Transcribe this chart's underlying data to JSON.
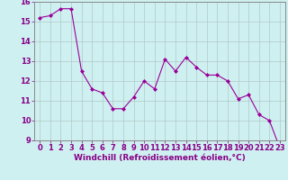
{
  "x": [
    0,
    1,
    2,
    3,
    4,
    5,
    6,
    7,
    8,
    9,
    10,
    11,
    12,
    13,
    14,
    15,
    16,
    17,
    18,
    19,
    20,
    21,
    22,
    23
  ],
  "y": [
    15.2,
    15.3,
    15.65,
    15.65,
    12.5,
    11.6,
    11.4,
    10.6,
    10.6,
    11.2,
    12.0,
    11.6,
    13.1,
    12.5,
    13.2,
    12.7,
    12.3,
    12.3,
    12.0,
    11.1,
    11.3,
    10.3,
    10.0,
    8.6
  ],
  "line_color": "#990099",
  "marker": "D",
  "marker_size": 2.0,
  "bg_color": "#cff0f0",
  "grid_color": "#b0c8c8",
  "xlabel": "Windchill (Refroidissement éolien,°C)",
  "ylim": [
    9,
    16
  ],
  "xlim": [
    -0.5,
    23.5
  ],
  "yticks": [
    9,
    10,
    11,
    12,
    13,
    14,
    15,
    16
  ],
  "xticks": [
    0,
    1,
    2,
    3,
    4,
    5,
    6,
    7,
    8,
    9,
    10,
    11,
    12,
    13,
    14,
    15,
    16,
    17,
    18,
    19,
    20,
    21,
    22,
    23
  ],
  "xlabel_fontsize": 6.5,
  "tick_fontsize": 6.0,
  "label_color": "#880088",
  "axis_color": "#888888",
  "line_width": 0.8
}
